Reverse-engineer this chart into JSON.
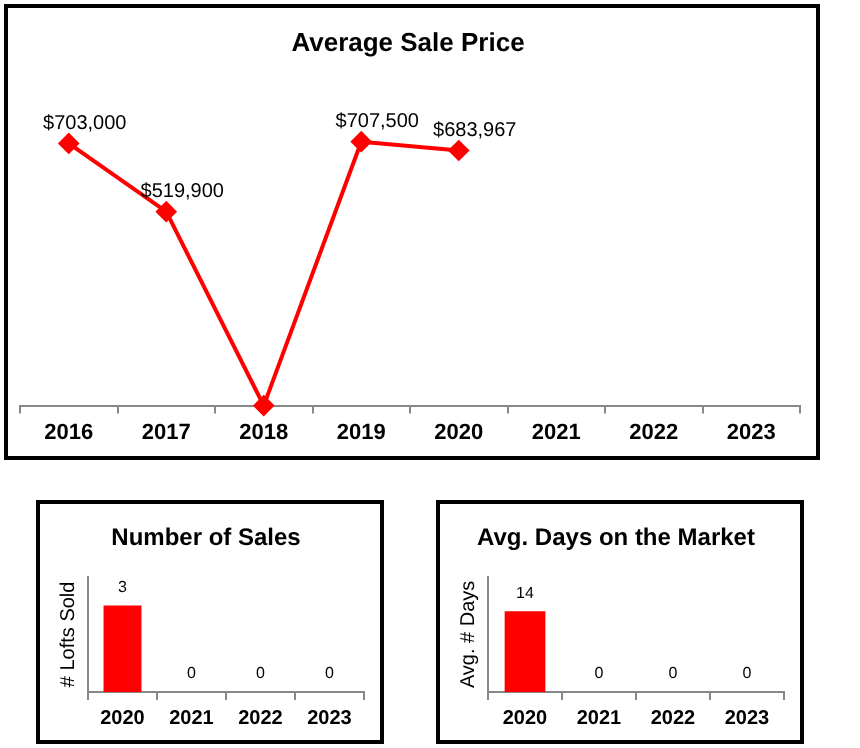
{
  "chart_data": [
    {
      "type": "line",
      "title": "Average Sale Price",
      "categories": [
        "2016",
        "2017",
        "2018",
        "2019",
        "2020",
        "2021",
        "2022",
        "2023"
      ],
      "series": [
        {
          "color": "#ff0000",
          "values": [
            703000,
            519900,
            0,
            707500,
            683967,
            null,
            null,
            null
          ],
          "value_labels": [
            "$703,000",
            "$519,900",
            null,
            "$707,500",
            "$683,967",
            null,
            null,
            null
          ]
        }
      ],
      "marker": "diamond",
      "grid": false,
      "legend": false,
      "tick_labels": "x"
    },
    {
      "type": "bar",
      "title": "Number of Sales",
      "ylabel": "# Lofts Sold",
      "categories": [
        "2020",
        "2021",
        "2022",
        "2023"
      ],
      "series": [
        {
          "color": "#ff0000",
          "values": [
            3,
            0,
            0,
            0
          ]
        }
      ],
      "data_labels": true,
      "grid": false,
      "legend": false,
      "tick_labels": "x"
    },
    {
      "type": "bar",
      "title": "Avg. Days on the Market",
      "ylabel": "Avg. # Days",
      "categories": [
        "2020",
        "2021",
        "2022",
        "2023"
      ],
      "series": [
        {
          "color": "#ff0000",
          "values": [
            14,
            0,
            0,
            0
          ]
        }
      ],
      "data_labels": true,
      "grid": false,
      "legend": false,
      "tick_labels": "x"
    }
  ]
}
